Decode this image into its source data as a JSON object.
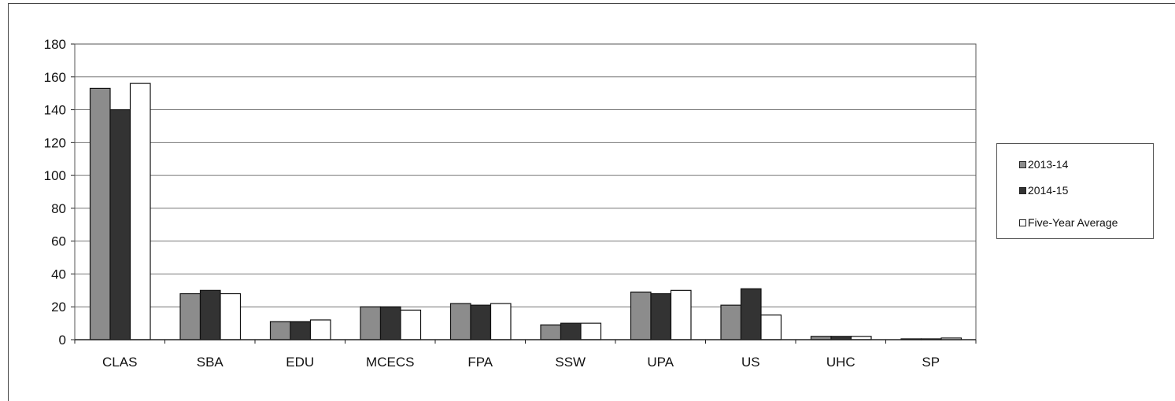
{
  "chart_data": {
    "type": "bar",
    "categories": [
      "CLAS",
      "SBA",
      "EDU",
      "MCECS",
      "FPA",
      "SSW",
      "UPA",
      "US",
      "UHC",
      "SP"
    ],
    "series": [
      {
        "name": "2013-14",
        "values": [
          153,
          28,
          11,
          20,
          22,
          9,
          29,
          21,
          2,
          0.5
        ],
        "color": "#8c8c8c"
      },
      {
        "name": "2014-15",
        "values": [
          140,
          30,
          11,
          20,
          21,
          10,
          28,
          31,
          2,
          0.5
        ],
        "color": "#333333"
      },
      {
        "name": "Five-Year Average",
        "values": [
          156,
          28,
          12,
          18,
          22,
          10,
          30,
          15,
          2,
          1
        ],
        "color": "#ffffff"
      }
    ],
    "ylim": [
      0,
      180
    ],
    "yticks": [
      0,
      20,
      40,
      60,
      80,
      100,
      120,
      140,
      160,
      180
    ],
    "grid": true,
    "legend_position": "right"
  }
}
